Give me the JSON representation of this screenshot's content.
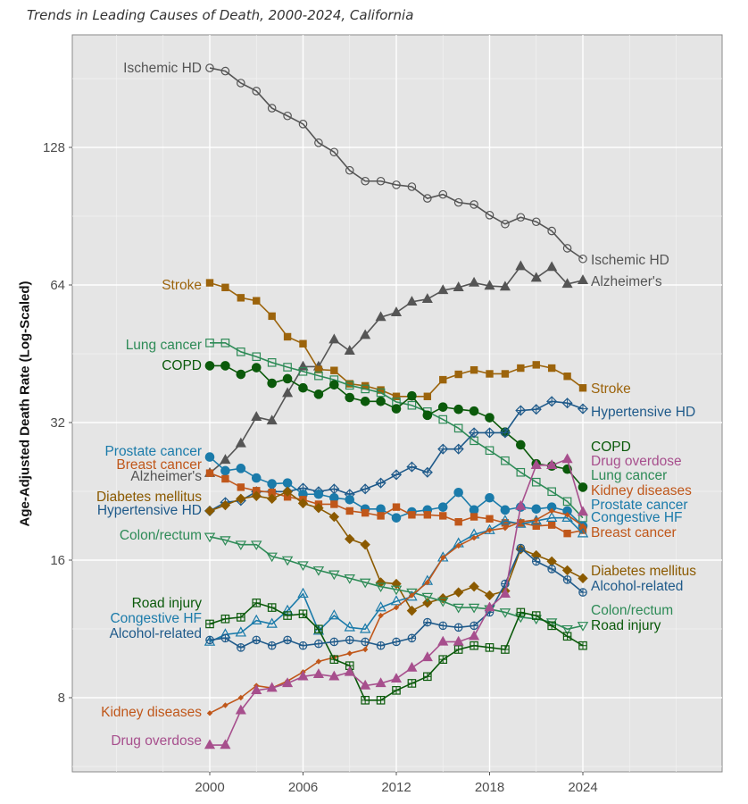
{
  "chart_data": {
    "type": "line",
    "title": "Trends in Leading Causes of Death, 2000-2024, California",
    "xlabel": "",
    "ylabel": "Age-Adjusted Death Rate (Log-Scaled)",
    "yscale": "log2",
    "ylim": [
      6.5,
      230
    ],
    "xlim": [
      1991.5,
      2032.5
    ],
    "x_ticks": [
      2000,
      2006,
      2012,
      2018,
      2024
    ],
    "y_ticks": [
      8,
      16,
      32,
      64,
      128
    ],
    "grid": true,
    "legend": "direct labels at both ends of each line",
    "x": [
      2000,
      2001,
      2002,
      2003,
      2004,
      2005,
      2006,
      2007,
      2008,
      2009,
      2010,
      2011,
      2012,
      2013,
      2014,
      2015,
      2016,
      2017,
      2018,
      2019,
      2020,
      2021,
      2022,
      2023,
      2024
    ],
    "series": [
      {
        "name": "Ischemic HD",
        "color": "#555555",
        "marker": "open-circle",
        "values": [
          191,
          188,
          177,
          170,
          156,
          150,
          144,
          131,
          125,
          114,
          108,
          108,
          106,
          105,
          99,
          101,
          97,
          96,
          91,
          87,
          90,
          88,
          84,
          77,
          73
        ]
      },
      {
        "name": "Alzheimer's",
        "color": "#555555",
        "marker": "filled-triangle",
        "values": [
          24.8,
          26.5,
          28.8,
          32.9,
          32.3,
          37.1,
          42.4,
          42.4,
          48.6,
          45.9,
          49.7,
          54.4,
          55.7,
          58.8,
          59.6,
          62.3,
          63.2,
          64.7,
          63.7,
          63.4,
          70.3,
          66.3,
          70.0,
          64.3,
          65.5
        ]
      },
      {
        "name": "Stroke",
        "color": "#9C640C",
        "marker": "filled-square",
        "values": [
          64.7,
          63.2,
          60.0,
          59.1,
          54.7,
          49.3,
          47.6,
          41.8,
          41.6,
          38.9,
          38.5,
          37.7,
          36.5,
          36.5,
          36.5,
          39.7,
          40.8,
          41.7,
          40.9,
          40.9,
          42.1,
          42.8,
          42.1,
          40.4,
          38.1
        ]
      },
      {
        "name": "Lung cancer",
        "color": "#2E8B57",
        "marker": "open-square",
        "values": [
          47.8,
          47.8,
          45.7,
          44.6,
          43.3,
          42.3,
          41.4,
          40.5,
          39.7,
          38.6,
          37.9,
          37.2,
          35.5,
          34.9,
          33.8,
          32.5,
          31.1,
          29.2,
          27.8,
          26.4,
          24.9,
          23.7,
          22.6,
          21.5,
          19.8
        ]
      },
      {
        "name": "COPD",
        "color": "#0B5A0B",
        "marker": "filled-circle",
        "values": [
          42.6,
          42.6,
          40.8,
          42.2,
          39.0,
          39.9,
          38.1,
          36.9,
          38.7,
          36.3,
          35.6,
          35.6,
          34.3,
          36.6,
          33.2,
          34.6,
          34.2,
          33.9,
          32.8,
          30.5,
          28.6,
          26.0,
          25.7,
          25.3,
          23.1
        ]
      },
      {
        "name": "Hypertensive HD",
        "color": "#1F5A8A",
        "marker": "open-diamond-plus",
        "values": [
          20.5,
          21.4,
          21.6,
          22.6,
          22.6,
          22.6,
          23.0,
          22.6,
          22.9,
          22.3,
          22.9,
          23.6,
          24.6,
          25.6,
          24.9,
          28.0,
          28.0,
          30.4,
          30.4,
          30.4,
          34.0,
          34.2,
          35.6,
          35.3,
          34.3
        ]
      },
      {
        "name": "Prostate cancer",
        "color": "#1B7BAA",
        "marker": "filled-circle",
        "values": [
          26.9,
          25.1,
          25.4,
          24.2,
          23.5,
          23.6,
          22.3,
          22.3,
          21.9,
          21.7,
          20.7,
          20.7,
          19.8,
          20.4,
          20.6,
          20.9,
          22.5,
          20.6,
          21.9,
          20.6,
          20.9,
          20.7,
          20.9,
          20.5,
          19.0
        ]
      },
      {
        "name": "Breast cancer",
        "color": "#C0571A",
        "marker": "filled-square",
        "values": [
          24.8,
          24.1,
          23.1,
          22.7,
          22.5,
          22.0,
          21.7,
          21.2,
          21.2,
          20.5,
          20.3,
          20.0,
          20.9,
          20.1,
          20.1,
          20.0,
          19.4,
          19.9,
          19.7,
          19.3,
          19.3,
          19.0,
          19.1,
          18.3,
          18.6
        ]
      },
      {
        "name": "Diabetes mellitus",
        "color": "#8B5A00",
        "marker": "filled-diamond",
        "values": [
          20.5,
          21.1,
          21.8,
          22.1,
          21.8,
          22.6,
          21.3,
          20.8,
          19.9,
          17.8,
          17.3,
          14.3,
          14.2,
          12.4,
          12.9,
          13.2,
          13.6,
          14.0,
          13.4,
          13.7,
          16.9,
          16.4,
          15.9,
          15.2,
          14.6
        ]
      },
      {
        "name": "Colon/rectum",
        "color": "#2E8B57",
        "marker": "open-triangle-down",
        "values": [
          18.0,
          17.7,
          17.3,
          17.3,
          16.3,
          16.0,
          15.6,
          15.2,
          14.9,
          14.6,
          14.3,
          14.0,
          13.8,
          13.6,
          13.3,
          13.0,
          12.6,
          12.6,
          12.5,
          12.3,
          12.0,
          11.9,
          11.7,
          11.3,
          11.5
        ]
      },
      {
        "name": "Congestive HF",
        "color": "#1B7BAA",
        "marker": "open-triangle",
        "values": [
          10.6,
          11.0,
          11.1,
          11.8,
          11.6,
          12.4,
          13.5,
          11.2,
          12.1,
          11.4,
          11.3,
          12.6,
          13.0,
          13.3,
          14.4,
          16.2,
          17.4,
          18.2,
          18.6,
          19.5,
          19.2,
          19.5,
          19.8,
          19.8,
          18.3
        ]
      },
      {
        "name": "Kidney diseases",
        "color": "#C0571A",
        "marker": "small-filled-diamond",
        "values": [
          7.4,
          7.7,
          8.0,
          8.5,
          8.4,
          8.7,
          9.1,
          9.6,
          9.8,
          10.0,
          10.2,
          12.1,
          12.6,
          13.4,
          14.3,
          16.2,
          17.2,
          17.9,
          18.6,
          18.8,
          19.4,
          19.6,
          20.5,
          20.1,
          19.0
        ]
      },
      {
        "name": "Road injury",
        "color": "#0B5A0B",
        "marker": "open-square-plus",
        "values": [
          11.6,
          11.9,
          12.0,
          12.9,
          12.6,
          12.1,
          12.2,
          11.3,
          9.7,
          9.4,
          7.9,
          7.9,
          8.3,
          8.6,
          8.9,
          9.7,
          10.2,
          10.4,
          10.3,
          10.2,
          12.3,
          12.1,
          11.5,
          10.9,
          10.4
        ]
      },
      {
        "name": "Alcohol-related",
        "color": "#1F5A8A",
        "marker": "open-circle-plus",
        "values": [
          10.7,
          10.8,
          10.3,
          10.7,
          10.4,
          10.7,
          10.4,
          10.5,
          10.6,
          10.7,
          10.6,
          10.4,
          10.6,
          10.8,
          11.7,
          11.5,
          11.4,
          11.5,
          12.3,
          14.2,
          17.0,
          15.9,
          15.3,
          14.5,
          13.6
        ]
      },
      {
        "name": "Drug overdose",
        "color": "#A74F8D",
        "marker": "filled-triangle",
        "values": [
          6.3,
          6.3,
          7.5,
          8.3,
          8.4,
          8.6,
          8.9,
          9.0,
          8.9,
          9.1,
          8.5,
          8.6,
          8.8,
          9.3,
          9.8,
          10.6,
          10.6,
          10.9,
          12.6,
          13.5,
          21.0,
          25.8,
          25.8,
          26.6,
          20.4
        ]
      }
    ],
    "left_labels": [
      "Ischemic HD",
      "Stroke",
      "Lung cancer",
      "COPD",
      "Prostate cancer",
      "Breast cancer",
      "Alzheimer's",
      "Diabetes mellitus",
      "Hypertensive HD",
      "Colon/rectum",
      "Road injury",
      "Congestive HF",
      "Alcohol-related",
      "Kidney diseases",
      "Drug overdose"
    ],
    "right_labels": [
      "Ischemic HD",
      "Alzheimer's",
      "Stroke",
      "Hypertensive HD",
      "COPD",
      "Drug overdose",
      "Lung cancer",
      "Kidney diseases",
      "Prostate cancer",
      "Congestive HF",
      "Breast cancer",
      "Diabetes mellitus",
      "Alcohol-related",
      "Colon/rectum",
      "Road injury"
    ]
  }
}
